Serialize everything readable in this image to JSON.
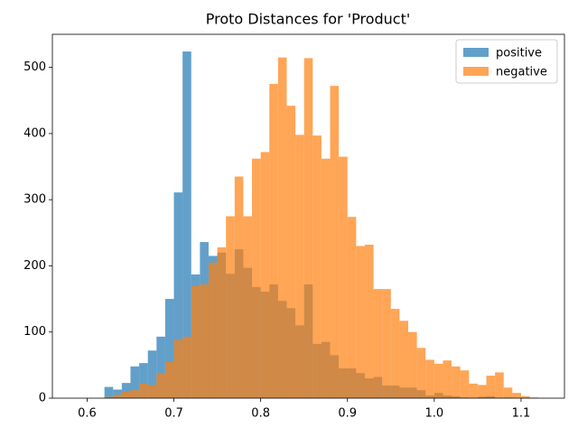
{
  "chart_data": {
    "type": "histogram",
    "title": "Proto Distances for 'Product'",
    "bins": [
      0.62,
      0.63,
      0.64,
      0.65,
      0.66,
      0.67,
      0.68,
      0.69,
      0.7,
      0.71,
      0.72,
      0.73,
      0.74,
      0.75,
      0.76,
      0.77,
      0.78,
      0.79,
      0.8,
      0.81,
      0.82,
      0.83,
      0.84,
      0.85,
      0.86,
      0.87,
      0.88,
      0.89,
      0.9,
      0.91,
      0.92,
      0.93,
      0.94,
      0.95,
      0.96,
      0.97,
      0.98,
      0.99,
      1.0,
      1.01,
      1.02,
      1.03,
      1.04,
      1.05,
      1.06,
      1.07,
      1.08,
      1.09,
      1.1,
      1.11,
      1.12
    ],
    "series": [
      {
        "name": "positive",
        "color": "#1f77b4",
        "values": [
          17,
          13,
          23,
          48,
          53,
          72,
          93,
          150,
          311,
          524,
          187,
          236,
          215,
          220,
          188,
          225,
          197,
          168,
          161,
          172,
          147,
          136,
          110,
          172,
          82,
          85,
          65,
          45,
          45,
          38,
          30,
          32,
          19,
          19,
          16,
          16,
          12,
          4,
          8,
          4,
          3,
          1,
          0,
          2,
          3,
          0,
          1,
          0,
          0,
          0
        ]
      },
      {
        "name": "negative",
        "color": "#ff7f0e",
        "values": [
          2,
          5,
          10,
          12,
          22,
          20,
          38,
          55,
          88,
          93,
          170,
          172,
          205,
          228,
          275,
          335,
          275,
          362,
          372,
          475,
          515,
          442,
          398,
          514,
          397,
          362,
          472,
          365,
          274,
          230,
          232,
          165,
          165,
          135,
          117,
          100,
          76,
          58,
          52,
          57,
          48,
          42,
          22,
          20,
          34,
          39,
          16,
          8,
          3,
          1
        ]
      }
    ],
    "opacity": 0.7,
    "xlim": [
      0.56,
      1.15
    ],
    "xticks": [
      0.6,
      0.7,
      0.8,
      0.9,
      {
        "value": 1,
        "label": "1.0"
      },
      1.1
    ],
    "ylim": [
      0,
      550
    ],
    "yticks": [
      0,
      100,
      200,
      300,
      400,
      500
    ],
    "legend": "upper right"
  }
}
